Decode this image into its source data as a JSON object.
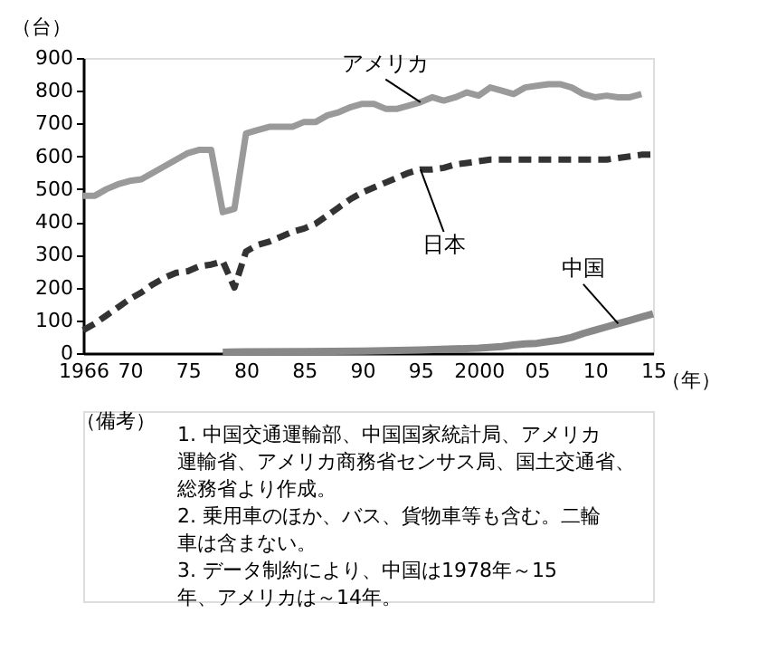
{
  "chart_data": {
    "type": "line",
    "ylabel": "（台）",
    "xlabel": "（年）",
    "xlim": [
      1966,
      2015
    ],
    "ylim": [
      0,
      900
    ],
    "xticks": [
      {
        "value": 1966,
        "label": "1966"
      },
      {
        "value": 1970,
        "label": "70"
      },
      {
        "value": 1975,
        "label": "75"
      },
      {
        "value": 1980,
        "label": "80"
      },
      {
        "value": 1985,
        "label": "85"
      },
      {
        "value": 1990,
        "label": "90"
      },
      {
        "value": 1995,
        "label": "95"
      },
      {
        "value": 2000,
        "label": "2000"
      },
      {
        "value": 2005,
        "label": "05"
      },
      {
        "value": 2010,
        "label": "10"
      },
      {
        "value": 2015,
        "label": "15"
      }
    ],
    "yticks": [
      0,
      100,
      200,
      300,
      400,
      500,
      600,
      700,
      800,
      900
    ],
    "grid": false,
    "legend": false,
    "marker": "none",
    "series": [
      {
        "name": "アメリカ",
        "color": "#9a9a9a",
        "line_style": "solid",
        "x": [
          1966,
          1967,
          1968,
          1969,
          1970,
          1971,
          1972,
          1973,
          1974,
          1975,
          1976,
          1977,
          1978,
          1979,
          1980,
          1981,
          1982,
          1983,
          1984,
          1985,
          1986,
          1987,
          1988,
          1989,
          1990,
          1991,
          1992,
          1993,
          1994,
          1995,
          1996,
          1997,
          1998,
          1999,
          2000,
          2001,
          2002,
          2003,
          2004,
          2005,
          2006,
          2007,
          2008,
          2009,
          2010,
          2011,
          2012,
          2013,
          2014
        ],
        "values": [
          480,
          480,
          500,
          515,
          525,
          530,
          550,
          570,
          590,
          610,
          620,
          620,
          430,
          440,
          670,
          680,
          690,
          690,
          690,
          705,
          705,
          725,
          735,
          750,
          760,
          760,
          745,
          745,
          755,
          765,
          780,
          770,
          780,
          795,
          785,
          810,
          800,
          790,
          810,
          815,
          820,
          820,
          810,
          790,
          780,
          785,
          780,
          780,
          790
        ]
      },
      {
        "name": "日本",
        "color": "#333333",
        "line_style": "dashed",
        "x": [
          1966,
          1967,
          1968,
          1969,
          1970,
          1971,
          1972,
          1973,
          1974,
          1975,
          1976,
          1977,
          1978,
          1979,
          1980,
          1981,
          1982,
          1983,
          1984,
          1985,
          1986,
          1987,
          1988,
          1989,
          1990,
          1991,
          1992,
          1993,
          1994,
          1995,
          1996,
          1997,
          1998,
          1999,
          2000,
          2001,
          2002,
          2003,
          2004,
          2005,
          2006,
          2007,
          2008,
          2009,
          2010,
          2011,
          2012,
          2013,
          2014,
          2015
        ],
        "values": [
          70,
          90,
          115,
          140,
          165,
          185,
          210,
          230,
          245,
          250,
          265,
          270,
          280,
          200,
          310,
          330,
          340,
          355,
          370,
          380,
          395,
          420,
          445,
          470,
          490,
          505,
          520,
          535,
          550,
          560,
          560,
          565,
          575,
          580,
          585,
          590,
          590,
          590,
          590,
          590,
          590,
          590,
          590,
          590,
          590,
          590,
          595,
          600,
          605,
          605
        ]
      },
      {
        "name": "中国",
        "color": "#888888",
        "line_style": "solid",
        "x": [
          1978,
          1980,
          1985,
          1990,
          1995,
          2000,
          2002,
          2003,
          2004,
          2005,
          2006,
          2007,
          2008,
          2009,
          2010,
          2011,
          2012,
          2013,
          2014,
          2015
        ],
        "values": [
          3,
          4,
          5,
          6,
          10,
          15,
          20,
          25,
          28,
          30,
          35,
          40,
          48,
          60,
          70,
          80,
          90,
          100,
          110,
          120
        ]
      }
    ],
    "annotations": [
      "（備考）",
      "1. 中国交通運輸部、中国国家統計局、アメリカ運輸省、アメリカ商務省センサス局、国土交通省、総務省より作成。",
      "2. 乗用車のほか、バス、貨物車等も含む。二輪車は含まない。",
      "3. データ制約により、中国は1978年～15年、アメリカは～14年。"
    ]
  }
}
